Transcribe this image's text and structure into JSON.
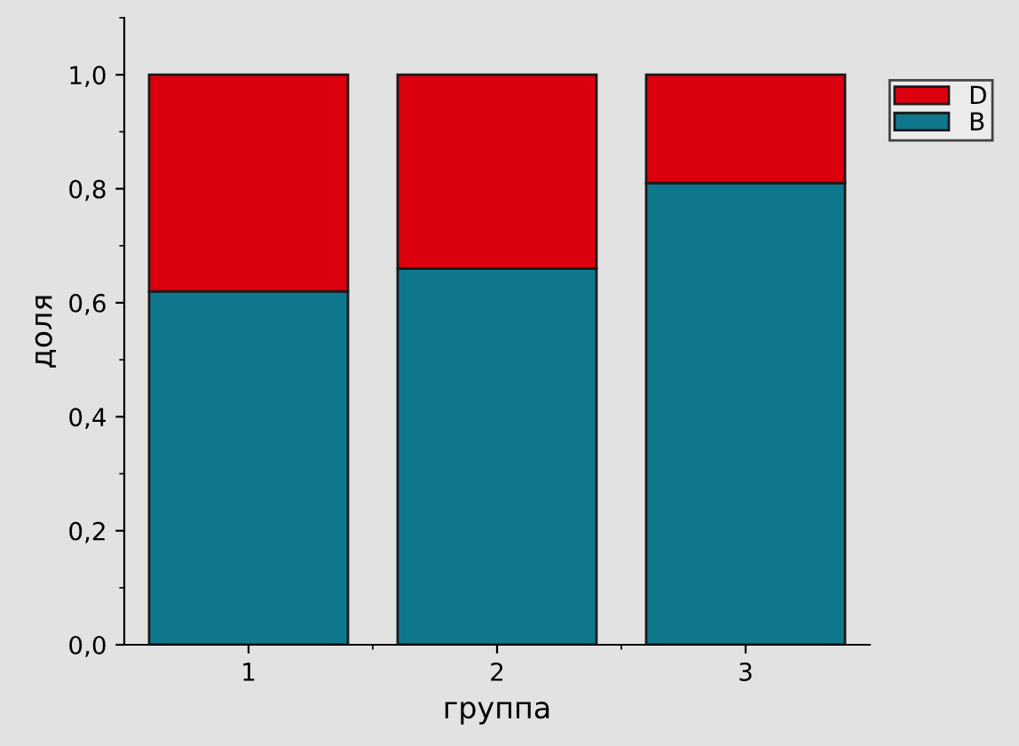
{
  "chart_data": {
    "type": "bar",
    "stacked": true,
    "xlabel": "группа",
    "ylabel": "доля",
    "categories": [
      "1",
      "2",
      "3"
    ],
    "series": [
      {
        "name": "B",
        "color": "#10788c",
        "values": [
          0.62,
          0.66,
          0.81
        ]
      },
      {
        "name": "D",
        "color": "#dc000f",
        "values": [
          0.38,
          0.34,
          0.19
        ]
      }
    ],
    "ylim": [
      0,
      1.1
    ],
    "yticks": [
      {
        "value": 0,
        "label": "0,0"
      },
      {
        "value": 0.2,
        "label": "0,2"
      },
      {
        "value": 0.4,
        "label": "0,4"
      },
      {
        "value": 0.6,
        "label": "0,6"
      },
      {
        "value": 0.8,
        "label": "0,8"
      },
      {
        "value": 1.0,
        "label": "1,0"
      }
    ],
    "grid": false,
    "legend": "top right"
  }
}
